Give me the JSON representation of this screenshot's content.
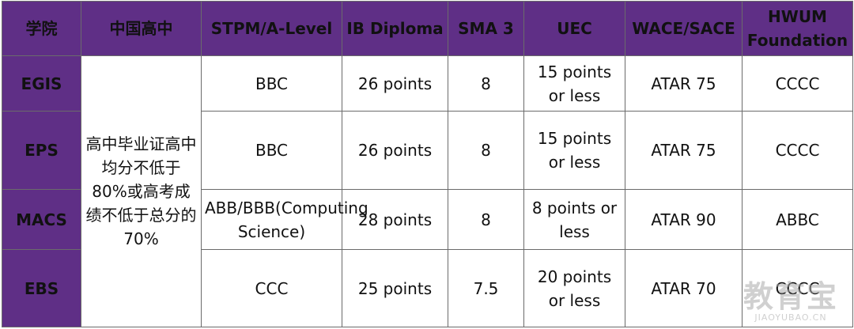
{
  "headers": [
    "学院",
    "中国高中",
    "STPM/A-Level",
    "IB Diploma",
    "SMA 3",
    "UEC",
    "WACE/SACE",
    "HWUM Foundation"
  ],
  "merged_requirement": "高中毕业证高中均分不低于80%或高考成绩不低于总分的70%",
  "rows": [
    {
      "school": "EGIS",
      "stpm": "BBC",
      "ib": "26 points",
      "sma": "8",
      "uec": "15 points or less",
      "wace": "ATAR 75",
      "hwum": "CCCC"
    },
    {
      "school": "EPS",
      "stpm": "BBC",
      "ib": "26 points",
      "sma": "8",
      "uec": "15 points or less",
      "wace": "ATAR 75",
      "hwum": "CCCC"
    },
    {
      "school": "MACS",
      "stpm": "ABB/BBB(Computing Science)",
      "ib": "28 points",
      "sma": "8",
      "uec": "8 points or less",
      "wace": "ATAR 90",
      "hwum": "ABBC"
    },
    {
      "school": "EBS",
      "stpm": "CCC",
      "ib": "25 points",
      "sma": "7.5",
      "uec": "20 points or less",
      "wace": "ATAR 70",
      "hwum": "CCCC"
    }
  ],
  "watermark": {
    "brand": "教育宝",
    "site": "JIAOYUBAO.CN"
  },
  "colors": {
    "header_bg": "#5f2f86",
    "header_text": "#ffffff",
    "border": "#6b6b6b"
  }
}
